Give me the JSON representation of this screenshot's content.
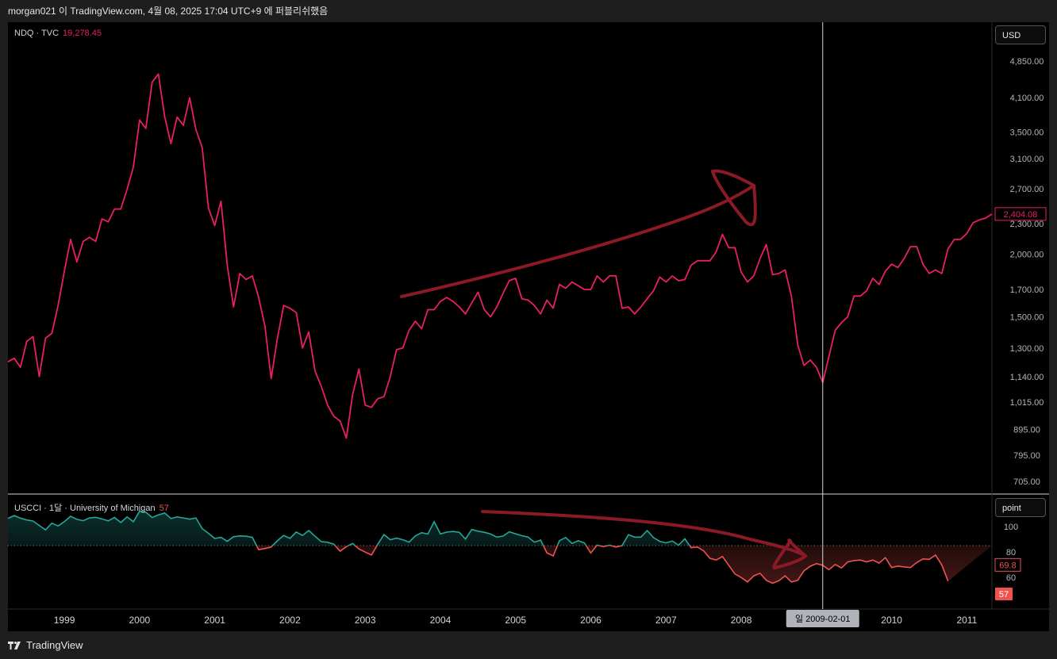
{
  "header": {
    "caption": "morgan021 이 TradingView.com, 4월 08, 2025 17:04 UTC+9 에 퍼블리쉬했음"
  },
  "main_pane": {
    "symbol": "NDQ · TVC",
    "value": "19,278.45",
    "unit_button": "USD",
    "price_ticks": [
      "4,850.00",
      "4,100.00",
      "3,500.00",
      "3,100.00",
      "2,700.00",
      "2,300.00",
      "2,000.00",
      "1,700.00",
      "1,500.00",
      "1,300.00",
      "1,140.00",
      "1,015.00",
      "895.00",
      "795.00",
      "705.00"
    ],
    "last_price_label": "2,404.08",
    "line_color": "#e91e63"
  },
  "sub_pane": {
    "title": "USCCI · 1달 · University of Michigan",
    "value": "57",
    "unit_button": "point",
    "ticks": [
      "100",
      "80",
      "60"
    ],
    "last_value_label": "69.8",
    "current_value_label": "57",
    "up_color": "#26a69a",
    "down_color": "#ef5350",
    "ref_level": 85
  },
  "time_axis": {
    "labels": [
      "1999",
      "2000",
      "2001",
      "2002",
      "2003",
      "2004",
      "2005",
      "2006",
      "2007",
      "2008",
      "2010",
      "2011"
    ],
    "crosshair_label": "일 2009-02-01"
  },
  "annotation_color": "#8b1a26",
  "footer": {
    "brand": "TradingView"
  },
  "chart_data": {
    "type": "line",
    "x_start": "1998-04",
    "x_end": "2011-02",
    "log_scale": true,
    "series": [
      {
        "name": "NDQ",
        "values": [
          1220,
          1240,
          1190,
          1340,
          1370,
          1140,
          1360,
          1390,
          1580,
          1850,
          2140,
          1930,
          2120,
          2160,
          2120,
          2350,
          2320,
          2460,
          2460,
          2690,
          2980,
          3700,
          3560,
          4400,
          4570,
          3760,
          3320,
          3750,
          3610,
          4100,
          3540,
          3260,
          2470,
          2280,
          2550,
          1900,
          1570,
          1830,
          1780,
          1810,
          1640,
          1440,
          1130,
          1360,
          1580,
          1560,
          1530,
          1300,
          1400,
          1170,
          1090,
          1000,
          950,
          930,
          860,
          1050,
          1180,
          1000,
          990,
          1030,
          1040,
          1140,
          1290,
          1300,
          1410,
          1470,
          1420,
          1550,
          1550,
          1610,
          1640,
          1610,
          1570,
          1520,
          1600,
          1680,
          1550,
          1500,
          1570,
          1670,
          1770,
          1790,
          1630,
          1620,
          1580,
          1520,
          1620,
          1560,
          1740,
          1710,
          1760,
          1730,
          1700,
          1700,
          1810,
          1760,
          1810,
          1810,
          1560,
          1570,
          1520,
          1570,
          1630,
          1690,
          1800,
          1760,
          1810,
          1770,
          1780,
          1900,
          1940,
          1940,
          1940,
          2020,
          2190,
          2060,
          2060,
          1840,
          1760,
          1810,
          1960,
          2090,
          1820,
          1830,
          1860,
          1650,
          1320,
          1200,
          1230,
          1190,
          1110,
          1250,
          1410,
          1460,
          1500,
          1650,
          1650,
          1690,
          1790,
          1740,
          1850,
          1910,
          1880,
          1960,
          2070,
          2070,
          1910,
          1830,
          1860,
          1830,
          2050,
          2140,
          2140,
          2200,
          2310,
          2340,
          2360,
          2404.08
        ]
      },
      {
        "name": "USCCI",
        "values": [
          106.5,
          108.7,
          106.6,
          105.2,
          104.4,
          100.9,
          97.4,
          102.7,
          100.5,
          103.9,
          108.1,
          105.7,
          104.6,
          106.8,
          107.3,
          106.0,
          104.5,
          107.2,
          103.2,
          107.6,
          103.8,
          112.0,
          111.3,
          107.1,
          109.2,
          110.7,
          106.4,
          107.6,
          106.8,
          105.8,
          106.8,
          98.4,
          94.7,
          90.6,
          91.5,
          88.4,
          92.0,
          92.6,
          92.4,
          91.5,
          81.8,
          82.7,
          83.9,
          88.8,
          93.0,
          90.7,
          95.7,
          93.0,
          96.9,
          92.4,
          88.1,
          87.6,
          86.1,
          80.6,
          84.2,
          86.7,
          82.4,
          79.9,
          77.6,
          86.0,
          93.7,
          89.6,
          90.9,
          89.6,
          87.7,
          92.6,
          95.2,
          94.1,
          103.8,
          94.2,
          95.6,
          96.1,
          95.5,
          90.2,
          97.7,
          96.4,
          95.5,
          94.1,
          91.7,
          92.5,
          95.9,
          94.3,
          92.8,
          91.7,
          87.7,
          89.3,
          79.3,
          76.9,
          88.9,
          91.4,
          86.7,
          88.8,
          87.0,
          79.1,
          85.4,
          84.2,
          85.3,
          83.9,
          85.0,
          93.6,
          91.7,
          91.7,
          96.9,
          91.3,
          88.4,
          87.1,
          88.6,
          85.3,
          90.4,
          83.4,
          83.9,
          80.9,
          75.0,
          73.6,
          76.4,
          69.5,
          62.6,
          59.8,
          56.4,
          61.2,
          63.2,
          57.6,
          55.3,
          57.3,
          61.2,
          56.3,
          57.6,
          65.1,
          68.7,
          70.8,
          69.5,
          66.0,
          70.1,
          67.4,
          72.1,
          73.2,
          73.6,
          72.2,
          73.6,
          71.2,
          75.5,
          67.7,
          68.9,
          68.2,
          67.7,
          71.6,
          74.5,
          74.2,
          77.5,
          69.8,
          57
        ]
      }
    ]
  }
}
